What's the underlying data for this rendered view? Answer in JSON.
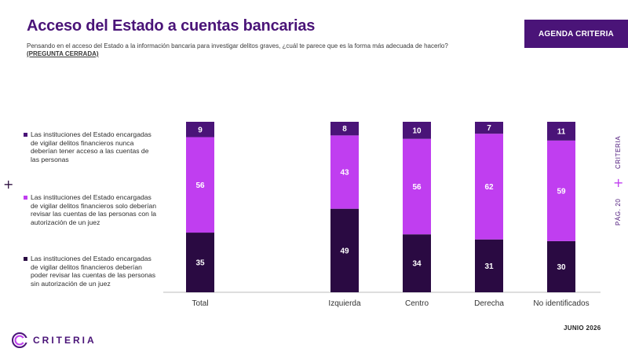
{
  "header": {
    "title": "Acceso del Estado a cuentas bancarias",
    "subtitle": "Pensando en el acceso del Estado a la información bancaria para investigar delitos graves, ¿cuál te parece que es la forma más adecuada de hacerlo?",
    "question_type": "(PREGUNTA CERRADA)",
    "agenda_button": "AGENDA CRITERIA"
  },
  "side": {
    "brand": "CRITERIA",
    "plus": "+",
    "page": "PÁG. 20"
  },
  "left_plus": "+",
  "footer": {
    "logo_text": "CRITERIA",
    "date": "JUNIO 2026"
  },
  "colors": {
    "series1": "#4a1478",
    "series2": "#c03ef0",
    "series3": "#2a0a42",
    "brand": "#4a1478"
  },
  "chart_data": {
    "type": "bar",
    "stacked": true,
    "categories": [
      "Total",
      "Izquierda",
      "Centro",
      "Derecha",
      "No identificados"
    ],
    "series": [
      {
        "name": "Las instituciones del Estado encargadas de vigilar delitos financieros deberían poder revisar las cuentas de las personas sin autorización de un juez",
        "color": "#2a0a42",
        "values": [
          35,
          49,
          34,
          31,
          30
        ]
      },
      {
        "name": "Las instituciones del Estado encargadas de vigilar delitos financieros solo deberían revisar las cuentas de las personas con la autorización de un juez",
        "color": "#c03ef0",
        "values": [
          56,
          43,
          56,
          62,
          59
        ]
      },
      {
        "name": "Las instituciones del Estado encargadas de vigilar delitos financieros nunca deberían tener acceso a las cuentas de las personas",
        "color": "#4a1478",
        "values": [
          9,
          8,
          10,
          7,
          11
        ]
      }
    ],
    "legend": [
      {
        "label": "Las instituciones del Estado encargadas de vigilar delitos financieros nunca deberían tener acceso a las cuentas de las personas",
        "color": "#4a1478"
      },
      {
        "label": "Las instituciones del Estado encargadas de vigilar delitos financieros solo deberían revisar las cuentas de las personas con la autorización de un juez",
        "color": "#c03ef0"
      },
      {
        "label": "Las instituciones del Estado encargadas de vigilar delitos financieros deberían poder revisar las cuentas de las personas sin autorización de un juez",
        "color": "#2a0a42"
      }
    ],
    "legend_position": "left",
    "ylim": [
      0,
      100
    ],
    "grid": false
  }
}
